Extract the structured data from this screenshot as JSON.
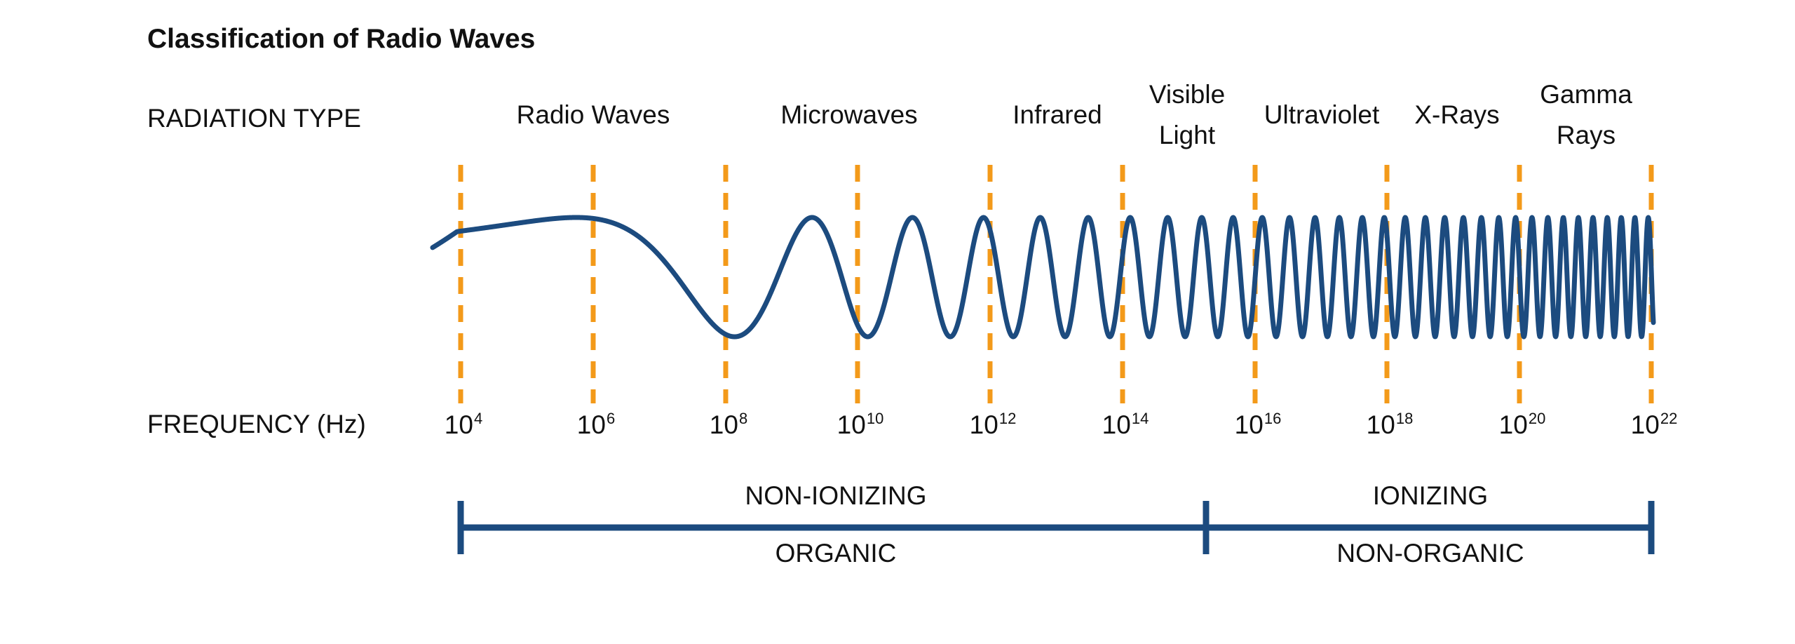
{
  "title": "Classification of Radio Waves",
  "row_labels": {
    "radiation_type": "RADIATION TYPE",
    "frequency": "FREQUENCY (Hz)"
  },
  "radiation_types": [
    {
      "lines": [
        "Radio Waves"
      ]
    },
    {
      "lines": [
        "Microwaves"
      ]
    },
    {
      "lines": [
        "Infrared"
      ]
    },
    {
      "lines": [
        "Visible",
        "Light"
      ]
    },
    {
      "lines": [
        "Ultraviolet"
      ]
    },
    {
      "lines": [
        "X-Rays"
      ]
    },
    {
      "lines": [
        "Gamma",
        "Rays"
      ]
    }
  ],
  "frequencies": [
    {
      "base": "10",
      "exp": "4"
    },
    {
      "base": "10",
      "exp": "6"
    },
    {
      "base": "10",
      "exp": "8"
    },
    {
      "base": "10",
      "exp": "10"
    },
    {
      "base": "10",
      "exp": "12"
    },
    {
      "base": "10",
      "exp": "14"
    },
    {
      "base": "10",
      "exp": "16"
    },
    {
      "base": "10",
      "exp": "18"
    },
    {
      "base": "10",
      "exp": "20"
    },
    {
      "base": "10",
      "exp": "22"
    }
  ],
  "bands": {
    "non_ionizing": "NON-IONIZING",
    "ionizing": "IONIZING",
    "organic": "ORGANIC",
    "non_organic": "NON-ORGANIC"
  },
  "colors": {
    "wave": "#1c4b7f",
    "gridline": "#f39a1a",
    "bracket": "#1c4b7f",
    "text": "#111111"
  }
}
